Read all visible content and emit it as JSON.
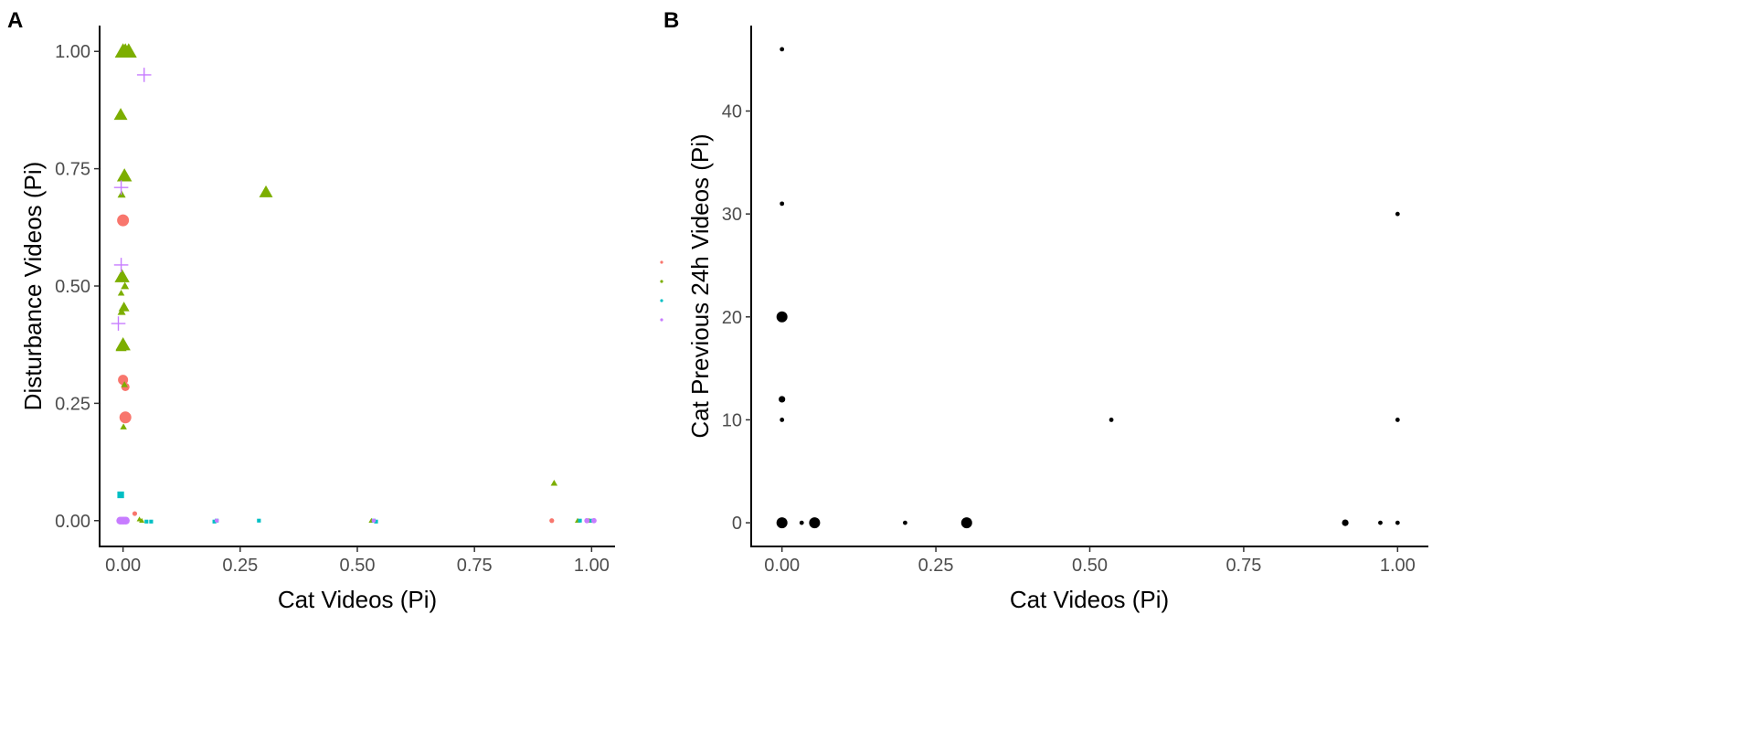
{
  "chart_data": [
    {
      "panel": "A",
      "type": "scatter",
      "xlabel": "Cat Videos (Pi)",
      "ylabel": "Disturbance Videos (Pi)",
      "xlim": [
        -0.05,
        1.05
      ],
      "ylim": [
        -0.055,
        1.055
      ],
      "xticks": [
        "0.00",
        "0.25",
        "0.50",
        "0.75",
        "1.00"
      ],
      "yticks": [
        "0.00",
        "0.25",
        "0.50",
        "0.75",
        "1.00"
      ],
      "grid": false,
      "legend": "right, keys only (no labels)",
      "series": [
        {
          "color": "#F8766D",
          "shape": "circle",
          "points": [
            {
              "x": 0.0,
              "y": 0.64,
              "size": 1.0
            },
            {
              "x": 0.0,
              "y": 0.3,
              "size": 0.85
            },
            {
              "x": 0.005,
              "y": 0.285,
              "size": 0.7
            },
            {
              "x": 0.005,
              "y": 0.22,
              "size": 1.0
            },
            {
              "x": 0.025,
              "y": 0.015,
              "size": 0.4
            },
            {
              "x": 0.915,
              "y": 0.0,
              "size": 0.4
            },
            {
              "x": 0.0,
              "y": 0.0,
              "size": 0.6
            }
          ]
        },
        {
          "color": "#7CAE00",
          "shape": "triangle",
          "points": [
            {
              "x": 0.0,
              "y": 1.0,
              "size": 1.2
            },
            {
              "x": 0.005,
              "y": 1.0,
              "size": 1.2
            },
            {
              "x": 0.012,
              "y": 1.0,
              "size": 1.2
            },
            {
              "x": -0.005,
              "y": 0.865,
              "size": 1.0
            },
            {
              "x": 0.003,
              "y": 0.735,
              "size": 1.1
            },
            {
              "x": 0.305,
              "y": 0.7,
              "size": 1.0
            },
            {
              "x": -0.003,
              "y": 0.695,
              "size": 0.6
            },
            {
              "x": -0.002,
              "y": 0.52,
              "size": 1.1
            },
            {
              "x": 0.004,
              "y": 0.5,
              "size": 0.6
            },
            {
              "x": -0.004,
              "y": 0.485,
              "size": 0.5
            },
            {
              "x": 0.002,
              "y": 0.455,
              "size": 0.8
            },
            {
              "x": -0.003,
              "y": 0.445,
              "size": 0.6
            },
            {
              "x": 0.0,
              "y": 0.375,
              "size": 1.1
            },
            {
              "x": -0.004,
              "y": 0.37,
              "size": 0.8
            },
            {
              "x": 0.003,
              "y": 0.29,
              "size": 0.5
            },
            {
              "x": 0.001,
              "y": 0.2,
              "size": 0.5
            },
            {
              "x": 0.92,
              "y": 0.08,
              "size": 0.5
            },
            {
              "x": 0.035,
              "y": 0.003,
              "size": 0.4
            },
            {
              "x": 0.04,
              "y": 0.0,
              "size": 0.4
            },
            {
              "x": 0.53,
              "y": 0.0,
              "size": 0.4
            },
            {
              "x": 0.97,
              "y": 0.0,
              "size": 0.4
            },
            {
              "x": 0.995,
              "y": 0.0,
              "size": 0.4
            }
          ]
        },
        {
          "color": "#00BFC4",
          "shape": "square",
          "points": [
            {
              "x": -0.005,
              "y": 0.055,
              "size": 0.7
            },
            {
              "x": 0.05,
              "y": -0.002,
              "size": 0.4
            },
            {
              "x": 0.06,
              "y": -0.002,
              "size": 0.4
            },
            {
              "x": 0.195,
              "y": -0.002,
              "size": 0.4
            },
            {
              "x": 0.2,
              "y": 0.0,
              "size": 0.4
            },
            {
              "x": 0.29,
              "y": 0.0,
              "size": 0.4
            },
            {
              "x": 0.535,
              "y": 0.0,
              "size": 0.4
            },
            {
              "x": 0.54,
              "y": -0.002,
              "size": 0.4
            },
            {
              "x": 0.975,
              "y": 0.0,
              "size": 0.4
            },
            {
              "x": 1.0,
              "y": 0.0,
              "size": 0.4
            }
          ]
        },
        {
          "color": "#C77CFF",
          "shape": "cross",
          "points": [
            {
              "x": 0.045,
              "y": 0.95,
              "size": 1.0
            },
            {
              "x": -0.004,
              "y": 0.71,
              "size": 1.0
            },
            {
              "x": -0.004,
              "y": 0.545,
              "size": 1.0
            },
            {
              "x": -0.01,
              "y": 0.42,
              "size": 1.0
            }
          ]
        },
        {
          "color": "#C77CFF",
          "shape": "circle",
          "points": [
            {
              "x": -0.006,
              "y": 0.0,
              "size": 0.65
            },
            {
              "x": -0.002,
              "y": 0.0,
              "size": 0.65
            },
            {
              "x": 0.002,
              "y": 0.0,
              "size": 0.65
            },
            {
              "x": 0.006,
              "y": 0.0,
              "size": 0.65
            },
            {
              "x": 0.2,
              "y": 0.0,
              "size": 0.35
            },
            {
              "x": 0.535,
              "y": 0.0,
              "size": 0.35
            },
            {
              "x": 0.99,
              "y": 0.0,
              "size": 0.45
            },
            {
              "x": 1.005,
              "y": 0.0,
              "size": 0.45
            }
          ]
        }
      ]
    },
    {
      "panel": "B",
      "type": "scatter",
      "xlabel": "Cat Videos (Pi)",
      "ylabel": "Cat Previous 24h Videos (Pi)",
      "xlim": [
        -0.05,
        1.05
      ],
      "ylim": [
        -2.3,
        48.3
      ],
      "xticks": [
        "0.00",
        "0.25",
        "0.50",
        "0.75",
        "1.00"
      ],
      "yticks": [
        "0",
        "10",
        "20",
        "30",
        "40"
      ],
      "ytick_values": [
        0,
        10,
        20,
        30,
        40
      ],
      "grid": false,
      "series": [
        {
          "color": "#000000",
          "shape": "circle",
          "points": [
            {
              "x": 0.0,
              "y": 46,
              "size": 0.4
            },
            {
              "x": 0.0,
              "y": 31,
              "size": 0.4
            },
            {
              "x": 0.0,
              "y": 20,
              "size": 1.0
            },
            {
              "x": 0.0,
              "y": 12,
              "size": 0.6
            },
            {
              "x": 0.0,
              "y": 10,
              "size": 0.4
            },
            {
              "x": 0.0,
              "y": 0,
              "size": 1.0
            },
            {
              "x": 0.032,
              "y": 0,
              "size": 0.4
            },
            {
              "x": 0.053,
              "y": 0,
              "size": 1.0
            },
            {
              "x": 0.2,
              "y": 0,
              "size": 0.4
            },
            {
              "x": 0.3,
              "y": 0,
              "size": 1.0
            },
            {
              "x": 0.535,
              "y": 10,
              "size": 0.4
            },
            {
              "x": 0.915,
              "y": 0,
              "size": 0.6
            },
            {
              "x": 0.972,
              "y": 0,
              "size": 0.4
            },
            {
              "x": 1.0,
              "y": 0,
              "size": 0.4
            },
            {
              "x": 1.0,
              "y": 10,
              "size": 0.4
            },
            {
              "x": 1.0,
              "y": 30,
              "size": 0.4
            }
          ]
        }
      ]
    }
  ],
  "legend": {
    "keys": [
      {
        "color": "#F8766D"
      },
      {
        "color": "#7CAE00"
      },
      {
        "color": "#00BFC4"
      },
      {
        "color": "#C77CFF"
      }
    ]
  }
}
